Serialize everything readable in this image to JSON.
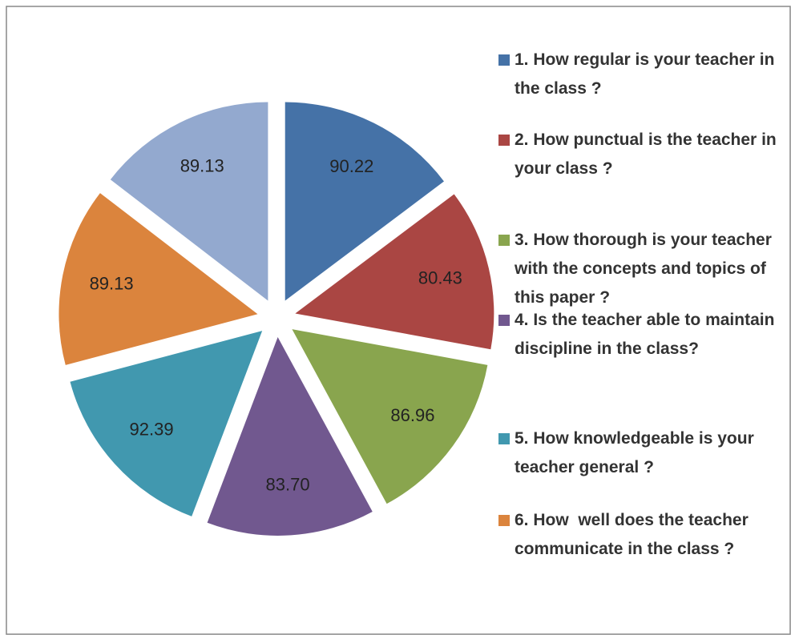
{
  "chart_data": {
    "type": "pie",
    "categories": [
      "1. How regular is your teacher in the class ?",
      "2. How punctual is the teacher in your class ?",
      "3. How thorough is your teacher with the concepts and topics of this paper ?",
      "4. Is the teacher able to maintain discipline in the class?",
      "5. How knowledgeable is your teacher general ?",
      "6. How  well does the teacher communicate in the class ?",
      null
    ],
    "values": [
      90.22,
      80.43,
      86.96,
      83.7,
      92.39,
      89.13,
      89.13
    ],
    "value_labels": [
      "90.22",
      "80.43",
      "86.96",
      "83.70",
      "92.39",
      "89.13",
      "89.13"
    ],
    "colors": [
      "#4572a7",
      "#aa4643",
      "#89a54e",
      "#71588f",
      "#4198af",
      "#db843d",
      "#93a9cf"
    ],
    "legend": "right"
  }
}
